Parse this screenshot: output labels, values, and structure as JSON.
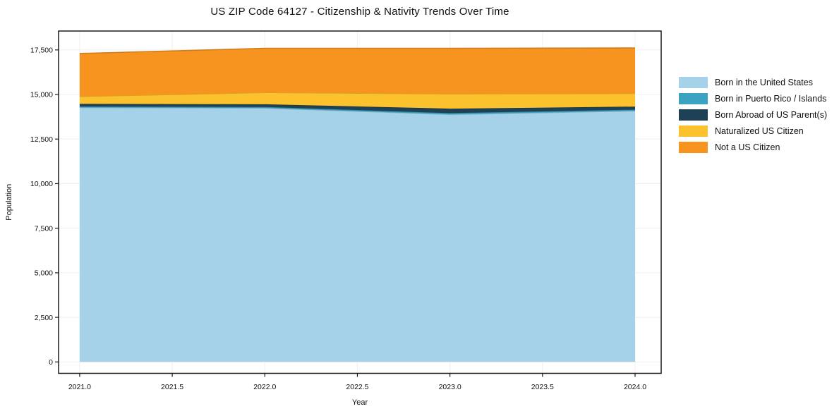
{
  "chart_data": {
    "type": "area",
    "stacked": true,
    "title": "US ZIP Code 64127 - Citizenship & Nativity Trends Over Time",
    "xlabel": "Year",
    "ylabel": "Population",
    "x": [
      2021,
      2022,
      2023,
      2024
    ],
    "series": [
      {
        "name": "Born in the United States",
        "color": "#a5d2e8",
        "values": [
          14270,
          14240,
          13880,
          14080
        ]
      },
      {
        "name": "Born in Puerto Rico / Islands",
        "color": "#3ba2c1",
        "values": [
          60,
          60,
          75,
          70
        ]
      },
      {
        "name": "Born Abroad of US Parent(s)",
        "color": "#1f4156",
        "values": [
          150,
          150,
          250,
          170
        ]
      },
      {
        "name": "Naturalized US Citizen",
        "color": "#fcc22d",
        "values": [
          410,
          660,
          830,
          740
        ]
      },
      {
        "name": "Not a US Citizen",
        "color": "#f7941f",
        "values": [
          2410,
          2480,
          2555,
          2550
        ]
      }
    ],
    "totals": [
      17300,
      17590,
      17590,
      17610
    ],
    "x_tick_values": [
      2021.0,
      2021.5,
      2022.0,
      2022.5,
      2023.0,
      2023.5,
      2024.0
    ],
    "x_tick_labels": [
      "2021.0",
      "2021.5",
      "2022.0",
      "2022.5",
      "2023.0",
      "2023.5",
      "2024.0"
    ],
    "y_tick_values": [
      0,
      2500,
      5000,
      7500,
      10000,
      12500,
      15000,
      17500
    ],
    "y_tick_labels": [
      "0",
      "2,500",
      "5,000",
      "7,500",
      "10,000",
      "12,500",
      "15,000",
      "17,500"
    ],
    "xlim": [
      2020.886,
      2024.141
    ],
    "ylim": [
      -640,
      18560
    ],
    "grid": true,
    "grid_color": "#f0f0f0",
    "spine_color": "#1a1a1a",
    "text_color": "#111111",
    "legend_position": "right"
  }
}
